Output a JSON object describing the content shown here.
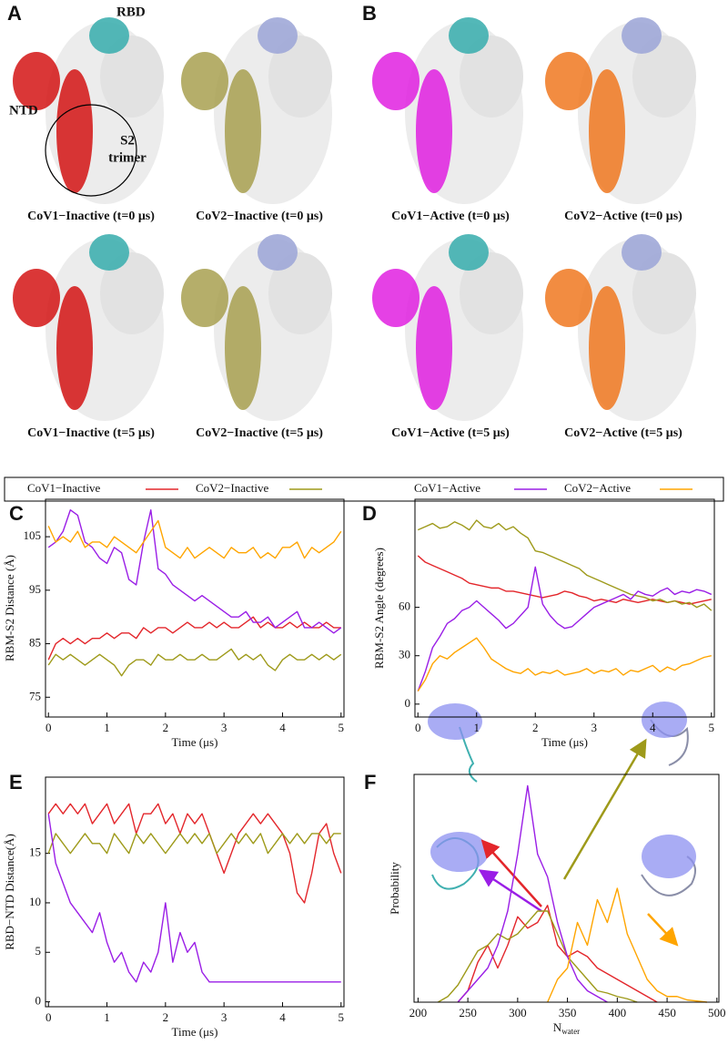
{
  "structures": {
    "panel_labels": [
      "A",
      "B"
    ],
    "annotations": [
      "RBD",
      "NTD",
      "S2",
      "trimer"
    ],
    "captions": [
      "CoV1−Inactive (t=0 μs)",
      "CoV2−Inactive (t=0 μs)",
      "CoV1−Active (t=0 μs)",
      "CoV2−Active (t=0 μs)",
      "CoV1−Inactive (t=5 μs)",
      "CoV2−Inactive (t=5 μs)",
      "CoV1−Active (t=5 μs)",
      "CoV2−Active (t=5 μs)"
    ]
  },
  "chart_data": [
    {
      "type": "line",
      "panel_label": "C",
      "xlabel": "Time (μs)",
      "ylabel": "RBM-S2 Distance (Å)",
      "x": [
        0,
        0.125,
        0.25,
        0.375,
        0.5,
        0.625,
        0.75,
        0.875,
        1,
        1.125,
        1.25,
        1.375,
        1.5,
        1.625,
        1.75,
        1.875,
        2,
        2.125,
        2.25,
        2.375,
        2.5,
        2.625,
        2.75,
        2.875,
        3,
        3.125,
        3.25,
        3.375,
        3.5,
        3.625,
        3.75,
        3.875,
        4,
        4.125,
        4.25,
        4.375,
        4.5,
        4.625,
        4.75,
        4.875,
        5
      ],
      "xlim": [
        -0.05,
        5.05
      ],
      "xticks": [
        0,
        1,
        2,
        3,
        4,
        5
      ],
      "ylim": [
        71.3,
        112
      ],
      "yticks": [
        75,
        85,
        95,
        105
      ],
      "series": [
        {
          "name": "CoV1−Inactive",
          "color": "#e3262b",
          "values": [
            82,
            85,
            86,
            85,
            86,
            85,
            86,
            86,
            87,
            86,
            87,
            87,
            86,
            88,
            87,
            88,
            88,
            87,
            88,
            89,
            88,
            88,
            89,
            88,
            89,
            88,
            88,
            89,
            90,
            88,
            89,
            88,
            88,
            89,
            88,
            89,
            88,
            88,
            89,
            88,
            88
          ]
        },
        {
          "name": "CoV2−Inactive",
          "color": "#9e9a1a",
          "values": [
            81,
            83,
            82,
            83,
            82,
            81,
            82,
            83,
            82,
            81,
            79,
            81,
            82,
            82,
            81,
            83,
            82,
            82,
            83,
            82,
            82,
            83,
            82,
            82,
            83,
            84,
            82,
            83,
            82,
            83,
            81,
            80,
            82,
            83,
            82,
            82,
            83,
            82,
            83,
            82,
            83
          ]
        },
        {
          "name": "CoV1−Active",
          "color": "#9a1ee6",
          "values": [
            103,
            104,
            106,
            110,
            109,
            104,
            103,
            101,
            100,
            103,
            102,
            97,
            96,
            104,
            110,
            99,
            98,
            96,
            95,
            94,
            93,
            94,
            93,
            92,
            91,
            90,
            90,
            91,
            89,
            89,
            90,
            88,
            89,
            90,
            91,
            88,
            88,
            89,
            88,
            87,
            88
          ]
        },
        {
          "name": "CoV2−Active",
          "color": "#ffa500",
          "values": [
            107,
            104,
            105,
            104,
            106,
            103,
            104,
            104,
            103,
            105,
            104,
            103,
            102,
            104,
            106,
            108,
            103,
            102,
            101,
            103,
            101,
            102,
            103,
            102,
            101,
            103,
            102,
            102,
            103,
            101,
            102,
            101,
            103,
            103,
            104,
            101,
            103,
            102,
            103,
            104,
            106
          ]
        }
      ]
    },
    {
      "type": "line",
      "panel_label": "D",
      "xlabel": "Time (μs)",
      "ylabel": "RBM-S2 Angle (degrees)",
      "x": [
        0,
        0.125,
        0.25,
        0.375,
        0.5,
        0.625,
        0.75,
        0.875,
        1,
        1.125,
        1.25,
        1.375,
        1.5,
        1.625,
        1.75,
        1.875,
        2,
        2.125,
        2.25,
        2.375,
        2.5,
        2.625,
        2.75,
        2.875,
        3,
        3.125,
        3.25,
        3.375,
        3.5,
        3.625,
        3.75,
        3.875,
        4,
        4.125,
        4.25,
        4.375,
        4.5,
        4.625,
        4.75,
        4.875,
        5
      ],
      "xlim": [
        -0.05,
        5.05
      ],
      "xticks": [
        0,
        1,
        2,
        3,
        4,
        5
      ],
      "ylim": [
        -8,
        127
      ],
      "yticks": [
        0,
        30,
        60
      ],
      "series": [
        {
          "color": "#e3262b",
          "values": [
            92,
            88,
            86,
            84,
            82,
            80,
            78,
            75,
            74,
            73,
            72,
            72,
            70,
            70,
            69,
            68,
            67,
            66,
            67,
            68,
            70,
            69,
            67,
            66,
            64,
            65,
            64,
            63,
            65,
            64,
            63,
            64,
            65,
            64,
            63,
            64,
            63,
            62,
            63,
            64,
            65
          ]
        },
        {
          "color": "#9e9a1a",
          "values": [
            108,
            110,
            112,
            109,
            110,
            113,
            111,
            108,
            114,
            110,
            109,
            112,
            108,
            110,
            106,
            103,
            95,
            94,
            92,
            90,
            88,
            86,
            84,
            80,
            78,
            76,
            74,
            72,
            70,
            68,
            67,
            66,
            64,
            65,
            63,
            64,
            62,
            63,
            60,
            62,
            58
          ]
        },
        {
          "color": "#9a1ee6",
          "values": [
            8,
            20,
            35,
            42,
            50,
            53,
            58,
            60,
            64,
            60,
            56,
            52,
            47,
            50,
            55,
            60,
            85,
            62,
            55,
            50,
            47,
            48,
            52,
            56,
            60,
            62,
            64,
            66,
            68,
            65,
            70,
            68,
            67,
            70,
            72,
            68,
            70,
            69,
            71,
            70,
            68
          ]
        },
        {
          "color": "#ffa500",
          "values": [
            8,
            15,
            25,
            30,
            28,
            32,
            35,
            38,
            41,
            35,
            28,
            25,
            22,
            20,
            19,
            22,
            18,
            20,
            19,
            21,
            18,
            19,
            20,
            22,
            19,
            21,
            20,
            22,
            18,
            21,
            20,
            22,
            24,
            20,
            23,
            21,
            24,
            25,
            27,
            29,
            30
          ]
        }
      ]
    },
    {
      "type": "line",
      "panel_label": "E",
      "xlabel": "Time (μs)",
      "ylabel": "RBD−NTD Distance(Å)",
      "x": [
        0,
        0.125,
        0.25,
        0.375,
        0.5,
        0.625,
        0.75,
        0.875,
        1,
        1.125,
        1.25,
        1.375,
        1.5,
        1.625,
        1.75,
        1.875,
        2,
        2.125,
        2.25,
        2.375,
        2.5,
        2.625,
        2.75,
        2.875,
        3,
        3.125,
        3.25,
        3.375,
        3.5,
        3.625,
        3.75,
        3.875,
        4,
        4.125,
        4.25,
        4.375,
        4.5,
        4.625,
        4.75,
        4.875,
        5
      ],
      "xlim": [
        -0.05,
        5.05
      ],
      "xticks": [
        0,
        1,
        2,
        3,
        4,
        5
      ],
      "ylim": [
        -0.5,
        22.7
      ],
      "yticks": [
        0,
        5,
        10,
        15
      ],
      "series": [
        {
          "color": "#e3262b",
          "values": [
            19,
            20,
            19,
            20,
            19,
            20,
            18,
            19,
            20,
            18,
            19,
            20,
            17,
            19,
            19,
            20,
            18,
            19,
            17,
            19,
            18,
            19,
            17,
            15,
            13,
            15,
            17,
            18,
            19,
            18,
            19,
            18,
            17,
            15,
            11,
            10,
            13,
            17,
            18,
            15,
            13
          ]
        },
        {
          "color": "#9e9a1a",
          "values": [
            15,
            17,
            16,
            15,
            16,
            17,
            16,
            16,
            15,
            17,
            16,
            15,
            17,
            16,
            17,
            16,
            15,
            16,
            17,
            16,
            17,
            16,
            17,
            15,
            16,
            17,
            16,
            17,
            16,
            17,
            15,
            16,
            17,
            16,
            17,
            16,
            17,
            17,
            16,
            17,
            17
          ]
        },
        {
          "color": "#9a1ee6",
          "values": [
            19,
            14,
            12,
            10,
            9,
            8,
            7,
            9,
            6,
            4,
            5,
            3,
            2,
            4,
            3,
            5,
            10,
            4,
            7,
            5,
            6,
            3,
            2,
            2,
            2,
            2,
            2,
            2,
            2,
            2,
            2,
            2,
            2,
            2,
            2,
            2,
            2,
            2,
            2,
            2,
            2
          ]
        }
      ]
    },
    {
      "type": "line",
      "panel_label": "F",
      "xlabel": "N",
      "xlabel_subscript": "water",
      "ylabel": "Probability",
      "x": [
        220,
        230,
        240,
        250,
        260,
        270,
        280,
        290,
        300,
        310,
        320,
        330,
        340,
        350,
        360,
        370,
        380,
        390,
        400,
        410,
        420,
        430,
        440,
        450,
        460,
        470,
        480,
        490
      ],
      "xlim": [
        196,
        502
      ],
      "xticks": [
        200,
        250,
        300,
        350,
        400,
        450,
        500
      ],
      "ylim": [
        0,
        0.2
      ],
      "series": [
        {
          "color": "#e3262b",
          "values": [
            null,
            null,
            0,
            0.01,
            0.035,
            0.05,
            0.03,
            0.05,
            0.075,
            0.065,
            0.07,
            0.085,
            0.05,
            0.04,
            0.045,
            0.04,
            0.03,
            0.025,
            0.02,
            0.015,
            0.01,
            0.005,
            0,
            null,
            null,
            null,
            null,
            null
          ]
        },
        {
          "color": "#9e9a1a",
          "values": [
            0,
            0.005,
            0.015,
            0.03,
            0.045,
            0.05,
            0.06,
            0.055,
            0.06,
            0.07,
            0.08,
            0.08,
            0.06,
            0.04,
            0.03,
            0.02,
            0.01,
            0.008,
            0.005,
            0.003,
            0,
            null,
            null,
            null,
            null,
            null,
            null,
            null
          ]
        },
        {
          "color": "#9a1ee6",
          "values": [
            null,
            null,
            0,
            0.01,
            0.02,
            0.03,
            0.05,
            0.08,
            0.13,
            0.19,
            0.13,
            0.11,
            0.07,
            0.04,
            0.02,
            0.01,
            0.005,
            0,
            null,
            null,
            null,
            null,
            null,
            null,
            null,
            null,
            null,
            null
          ]
        },
        {
          "color": "#ffa500",
          "values": [
            null,
            null,
            null,
            null,
            null,
            null,
            null,
            null,
            null,
            null,
            null,
            0,
            0.02,
            0.03,
            0.07,
            0.05,
            0.09,
            0.07,
            0.1,
            0.06,
            0.04,
            0.02,
            0.01,
            0.005,
            0.005,
            0.002,
            0.001,
            0
          ]
        }
      ]
    }
  ]
}
